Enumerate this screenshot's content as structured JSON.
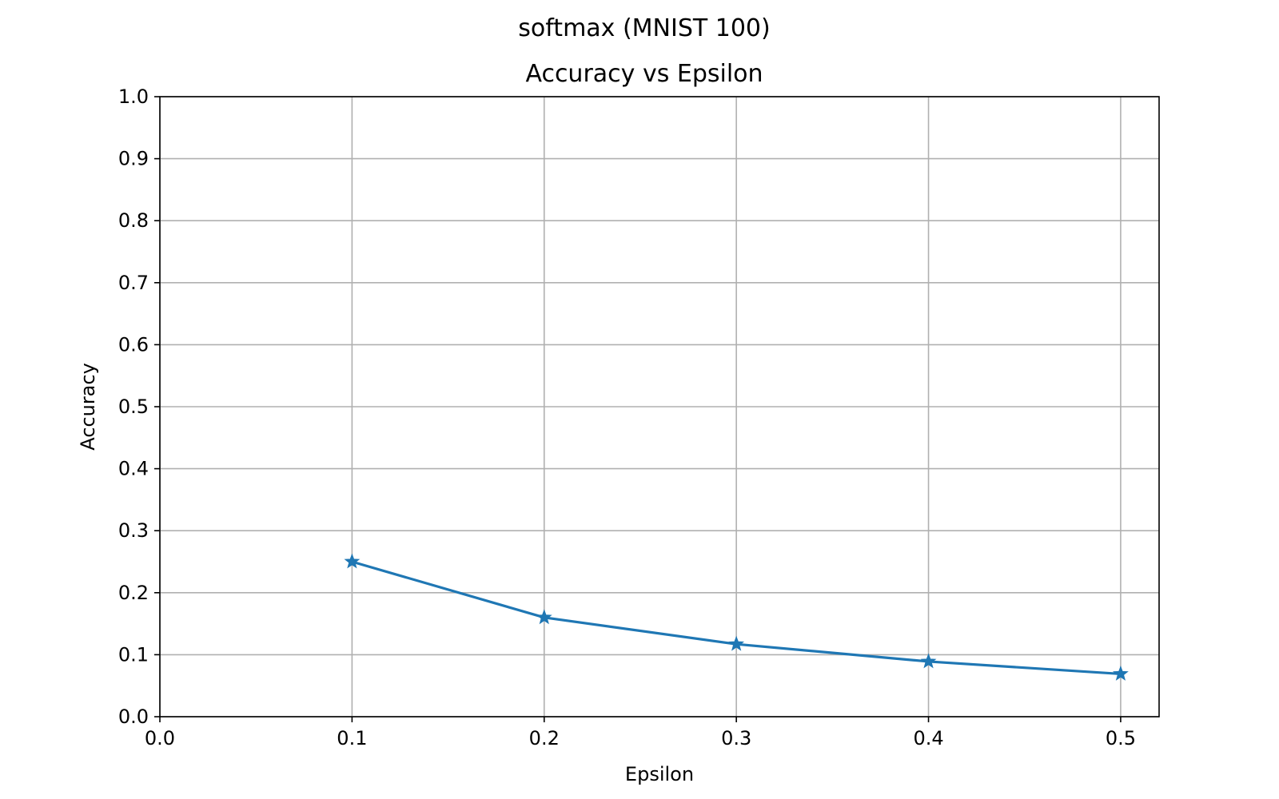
{
  "chart_data": {
    "type": "line",
    "suptitle": "softmax (MNIST 100)",
    "title": "Accuracy vs Epsilon",
    "xlabel": "Epsilon",
    "ylabel": "Accuracy",
    "xlim": [
      0.0,
      0.52
    ],
    "ylim": [
      0.0,
      1.0
    ],
    "xticks": [
      "0.0",
      "0.1",
      "0.2",
      "0.3",
      "0.4",
      "0.5"
    ],
    "yticks": [
      "0.0",
      "0.1",
      "0.2",
      "0.3",
      "0.4",
      "0.5",
      "0.6",
      "0.7",
      "0.8",
      "0.9",
      "1.0"
    ],
    "grid": true,
    "series": [
      {
        "color": "#1f77b4",
        "marker": "star",
        "x": [
          0.1,
          0.2,
          0.3,
          0.4,
          0.5
        ],
        "y": [
          0.25,
          0.16,
          0.117,
          0.089,
          0.069
        ]
      }
    ]
  }
}
